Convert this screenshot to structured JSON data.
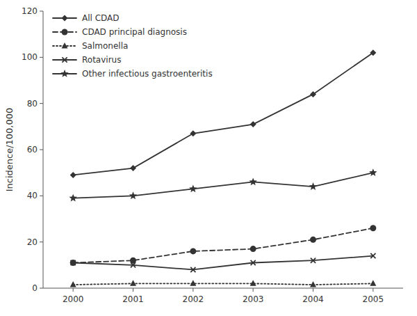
{
  "chart_data": {
    "type": "line",
    "x": [
      2000,
      2001,
      2002,
      2003,
      2004,
      2005
    ],
    "series": [
      {
        "name": "All CDAD",
        "color": "#333333",
        "marker": "diamond",
        "line_style": "solid",
        "values": [
          49,
          52,
          67,
          71,
          84,
          102
        ]
      },
      {
        "name": "CDAD principal diagnosis",
        "color": "#333333",
        "marker": "circle",
        "line_style": "dashed",
        "values": [
          11,
          12,
          16,
          17,
          21,
          26
        ]
      },
      {
        "name": "Salmonella",
        "color": "#333333",
        "marker": "triangle",
        "line_style": "dotted",
        "values": [
          1.5,
          2,
          2,
          2,
          1.5,
          2
        ]
      },
      {
        "name": "Rotavirus",
        "color": "#333333",
        "marker": "x",
        "line_style": "solid",
        "values": [
          11,
          10,
          8,
          11,
          12,
          14
        ]
      },
      {
        "name": "Other infectious gastroenteritis",
        "color": "#333333",
        "marker": "star",
        "line_style": "solid",
        "values": [
          39,
          40,
          43,
          46,
          44,
          50
        ]
      }
    ],
    "ylabel": "Incidence/100,000",
    "ylim": [
      0,
      120
    ],
    "yticks": [
      0,
      20,
      40,
      60,
      80,
      100,
      120
    ],
    "xlim": [
      1999.5,
      2005.5
    ],
    "xticks": [
      2000,
      2001,
      2002,
      2003,
      2004,
      2005
    ],
    "legend": "upper left",
    "grid": false
  }
}
